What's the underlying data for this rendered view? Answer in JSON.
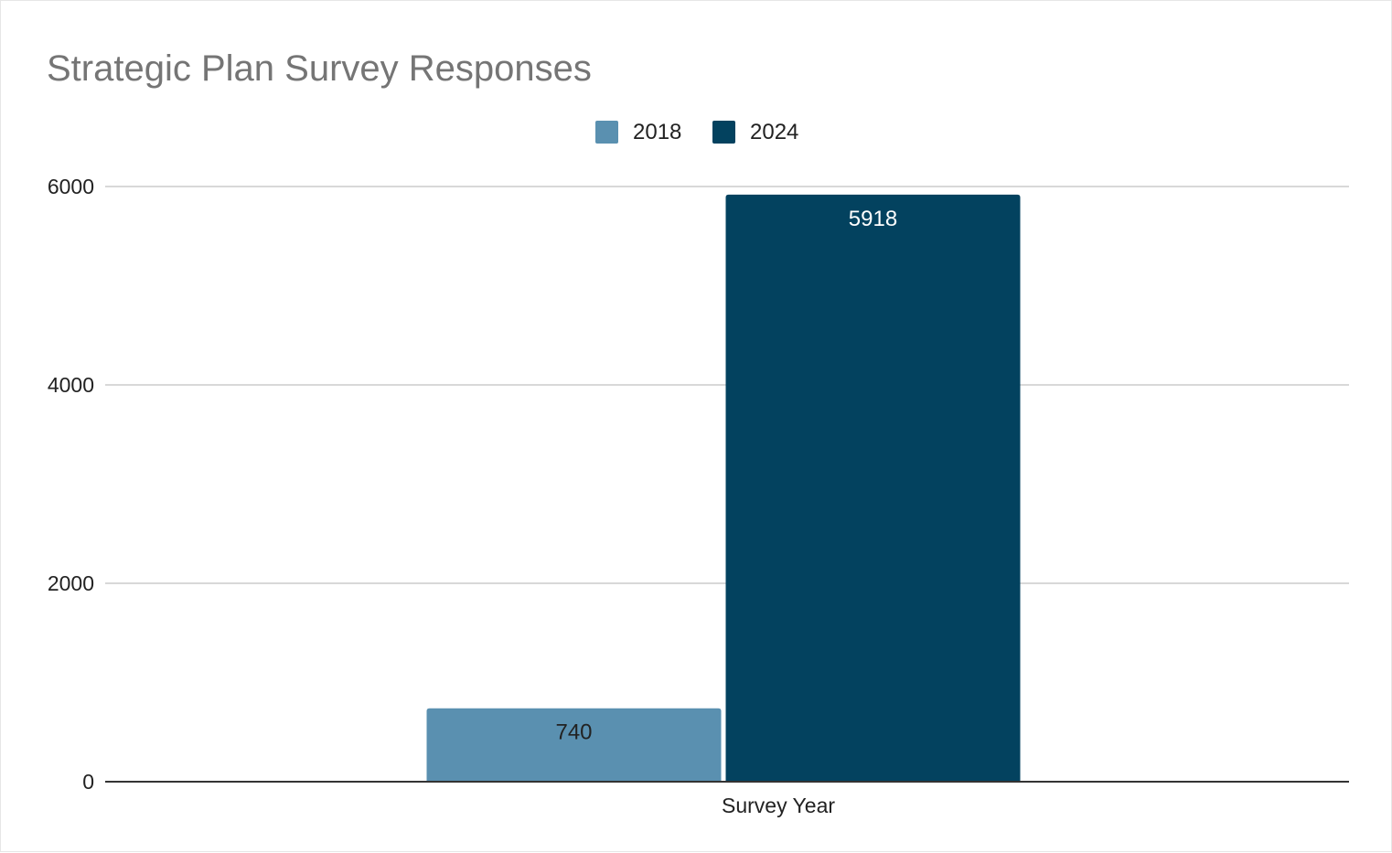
{
  "chart_data": {
    "type": "bar",
    "title": "Strategic Plan Survey Responses",
    "categories": [
      "Survey Year"
    ],
    "series": [
      {
        "name": "2018",
        "values": [
          740
        ],
        "color": "#5a90b0"
      },
      {
        "name": "2024",
        "values": [
          5918
        ],
        "color": "#03425f"
      }
    ],
    "data_labels": [
      "740",
      "5918"
    ],
    "data_label_colors": [
      "#222222",
      "#ffffff"
    ],
    "ylim": [
      0,
      6000
    ],
    "y_ticks": [
      0,
      2000,
      4000,
      6000
    ],
    "xlabel": "",
    "ylabel": "",
    "legend_position": "top-center",
    "grid": true
  }
}
